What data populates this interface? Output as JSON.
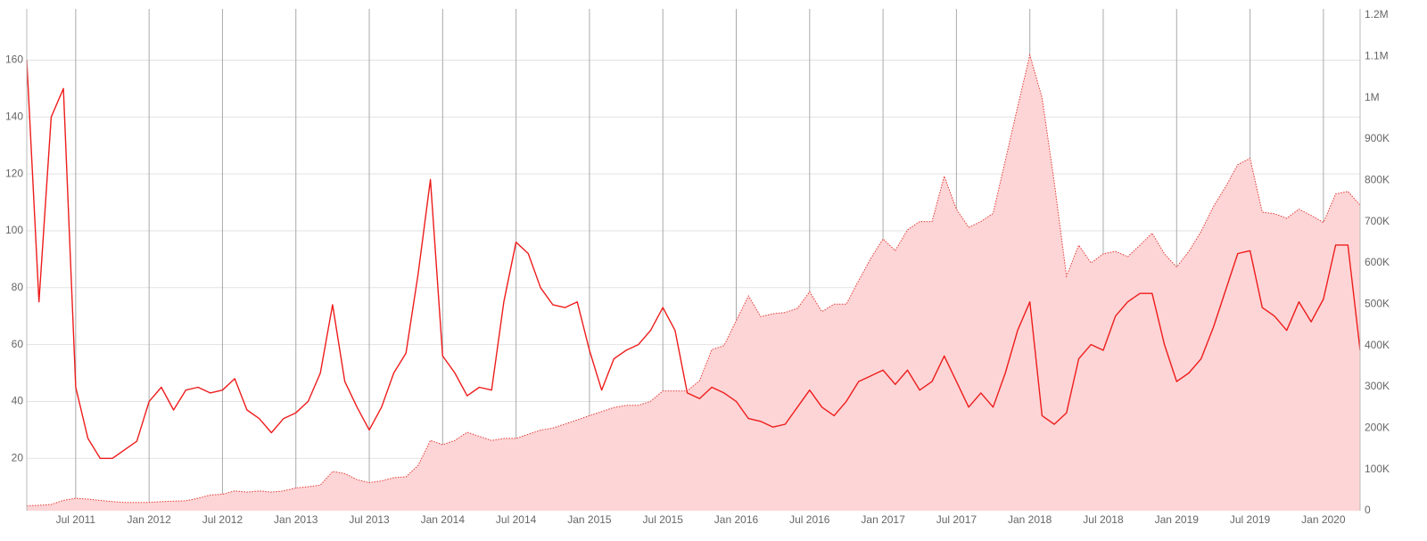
{
  "chart_data": {
    "type": "line",
    "x": [
      "2011-03",
      "2011-04",
      "2011-05",
      "2011-06",
      "2011-07",
      "2011-08",
      "2011-09",
      "2011-10",
      "2011-11",
      "2011-12",
      "2012-01",
      "2012-02",
      "2012-03",
      "2012-04",
      "2012-05",
      "2012-06",
      "2012-07",
      "2012-08",
      "2012-09",
      "2012-10",
      "2012-11",
      "2012-12",
      "2013-01",
      "2013-02",
      "2013-03",
      "2013-04",
      "2013-05",
      "2013-06",
      "2013-07",
      "2013-08",
      "2013-09",
      "2013-10",
      "2013-11",
      "2013-12",
      "2014-01",
      "2014-02",
      "2014-03",
      "2014-04",
      "2014-05",
      "2014-06",
      "2014-07",
      "2014-08",
      "2014-09",
      "2014-10",
      "2014-11",
      "2014-12",
      "2015-01",
      "2015-02",
      "2015-03",
      "2015-04",
      "2015-05",
      "2015-06",
      "2015-07",
      "2015-08",
      "2015-09",
      "2015-10",
      "2015-11",
      "2015-12",
      "2016-01",
      "2016-02",
      "2016-03",
      "2016-04",
      "2016-05",
      "2016-06",
      "2016-07",
      "2016-08",
      "2016-09",
      "2016-10",
      "2016-11",
      "2016-12",
      "2017-01",
      "2017-02",
      "2017-03",
      "2017-04",
      "2017-05",
      "2017-06",
      "2017-07",
      "2017-08",
      "2017-09",
      "2017-10",
      "2017-11",
      "2017-12",
      "2018-01",
      "2018-02",
      "2018-03",
      "2018-04",
      "2018-05",
      "2018-06",
      "2018-07",
      "2018-08",
      "2018-09",
      "2018-10",
      "2018-11",
      "2018-12",
      "2019-01",
      "2019-02",
      "2019-03",
      "2019-04",
      "2019-05",
      "2019-06",
      "2019-07",
      "2019-08",
      "2019-09",
      "2019-10",
      "2019-11",
      "2019-12",
      "2020-01",
      "2020-02",
      "2020-03",
      "2020-04"
    ],
    "series": [
      {
        "color": "#e53935",
        "fill": "#fdd5d6",
        "axis": "y2",
        "values": [
          12000,
          13000,
          15000,
          25000,
          30000,
          28000,
          25000,
          22000,
          20000,
          20000,
          20000,
          22000,
          23000,
          24000,
          30000,
          38000,
          40000,
          48000,
          45000,
          48000,
          45000,
          48000,
          55000,
          58000,
          62000,
          95000,
          90000,
          75000,
          68000,
          72000,
          80000,
          82000,
          110000,
          170000,
          160000,
          170000,
          190000,
          180000,
          170000,
          175000,
          175000,
          185000,
          195000,
          200000,
          210000,
          220000,
          230000,
          240000,
          250000,
          255000,
          255000,
          265000,
          290000,
          290000,
          290000,
          315000,
          390000,
          400000,
          460000,
          520000,
          470000,
          477000,
          480000,
          490000,
          530000,
          482000,
          500000,
          500000,
          557000,
          611000,
          658000,
          630000,
          680000,
          700000,
          700000,
          810000,
          730000,
          686000,
          700000,
          720000,
          848000,
          978000,
          1103000,
          1000000,
          795000,
          568000,
          643000,
          600000,
          622000,
          628000,
          615000,
          643000,
          672000,
          622000,
          590000,
          628000,
          676000,
          736000,
          784000,
          838000,
          853000,
          723000,
          719000,
          708000,
          730000,
          715000,
          698000,
          767000,
          773000,
          740000
        ]
      },
      {
        "color": "#ee1c1c",
        "values": [
          160,
          75,
          140,
          150,
          45,
          27,
          20,
          20,
          23,
          26,
          40,
          45,
          37,
          44,
          45,
          43,
          44,
          48,
          37,
          34,
          29,
          34,
          36,
          40,
          50,
          74,
          47,
          38,
          30,
          38,
          50,
          57,
          85,
          118,
          56,
          50,
          42,
          45,
          44,
          75,
          96,
          92,
          80,
          74,
          73,
          75,
          58,
          44,
          55,
          58,
          60,
          65,
          73,
          65,
          43,
          41,
          45,
          43,
          40,
          34,
          33,
          31,
          32,
          38,
          44,
          38,
          35,
          40,
          47,
          49,
          51,
          46,
          51,
          44,
          47,
          56,
          47,
          38,
          43,
          38,
          50,
          65,
          75,
          35,
          32,
          36,
          55,
          60,
          58,
          70,
          75,
          78,
          78,
          60,
          47,
          50,
          55,
          66,
          79,
          92,
          93,
          73,
          70,
          65,
          75,
          68,
          76,
          95,
          95,
          58
        ]
      }
    ],
    "xlim": [
      "2011-03",
      "2020-04"
    ],
    "xticks": [
      {
        "value": "2011-07",
        "label": "Jul 2011"
      },
      {
        "value": "2012-01",
        "label": "Jan 2012"
      },
      {
        "value": "2012-07",
        "label": "Jul 2012"
      },
      {
        "value": "2013-01",
        "label": "Jan 2013"
      },
      {
        "value": "2013-07",
        "label": "Jul 2013"
      },
      {
        "value": "2014-01",
        "label": "Jan 2014"
      },
      {
        "value": "2014-07",
        "label": "Jul 2014"
      },
      {
        "value": "2015-01",
        "label": "Jan 2015"
      },
      {
        "value": "2015-07",
        "label": "Jul 2015"
      },
      {
        "value": "2016-01",
        "label": "Jan 2016"
      },
      {
        "value": "2016-07",
        "label": "Jul 2016"
      },
      {
        "value": "2017-01",
        "label": "Jan 2017"
      },
      {
        "value": "2017-07",
        "label": "Jul 2017"
      },
      {
        "value": "2018-01",
        "label": "Jan 2018"
      },
      {
        "value": "2018-07",
        "label": "Jul 2018"
      },
      {
        "value": "2019-01",
        "label": "Jan 2019"
      },
      {
        "value": "2019-07",
        "label": "Jul 2019"
      },
      {
        "value": "2020-01",
        "label": "Jan 2020"
      }
    ],
    "ylim": [
      1.6,
      178
    ],
    "yticks": [
      20,
      40,
      60,
      80,
      100,
      120,
      140,
      160
    ],
    "y2lim": [
      0,
      1215000
    ],
    "y2ticks": [
      0,
      {
        "value": 100000,
        "label": "100K"
      },
      {
        "value": 200000,
        "label": "200K"
      },
      {
        "value": 300000,
        "label": "300K"
      },
      {
        "value": 400000,
        "label": "400K"
      },
      {
        "value": 500000,
        "label": "500K"
      },
      {
        "value": 600000,
        "label": "600K"
      },
      {
        "value": 700000,
        "label": "700K"
      },
      {
        "value": 800000,
        "label": "800K"
      },
      {
        "value": 900000,
        "label": "900K"
      },
      {
        "value": 1000000,
        "label": "1M"
      },
      {
        "value": 1100000,
        "label": "1.1M"
      },
      {
        "value": 1200000,
        "label": "1.2M"
      }
    ],
    "grid": true
  }
}
